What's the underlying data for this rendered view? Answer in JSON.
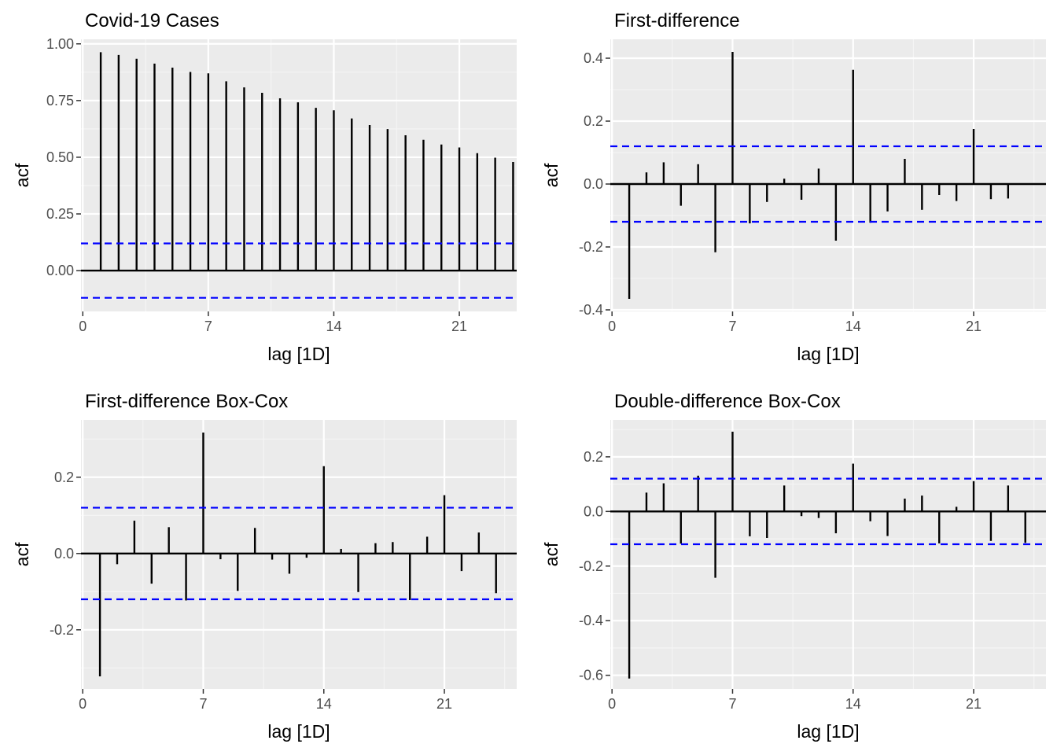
{
  "chart_data": [
    {
      "type": "bar",
      "title": "Covid-19 Cases",
      "xlabel": "lag [1D]",
      "ylabel": "acf",
      "xlim": [
        -0.1,
        24.2
      ],
      "ylim": [
        -0.18,
        1.02
      ],
      "xticks": [
        0,
        7,
        14,
        21
      ],
      "yticks": [
        0,
        0.25,
        0.5,
        0.75,
        1
      ],
      "ytick_labels": [
        "0.00",
        "0.25",
        "0.50",
        "0.75",
        "1.00"
      ],
      "conf_limit": 0.12,
      "x": [
        1,
        2,
        3,
        4,
        5,
        6,
        7,
        8,
        9,
        10,
        11,
        12,
        13,
        14,
        15,
        16,
        17,
        18,
        19,
        20,
        21,
        22,
        23,
        24
      ],
      "values": [
        0.963,
        0.951,
        0.934,
        0.913,
        0.895,
        0.876,
        0.87,
        0.835,
        0.808,
        0.784,
        0.76,
        0.742,
        0.718,
        0.707,
        0.671,
        0.642,
        0.624,
        0.597,
        0.577,
        0.556,
        0.543,
        0.518,
        0.498,
        0.479
      ]
    },
    {
      "type": "bar",
      "title": "First-difference",
      "xlabel": "lag [1D]",
      "ylabel": "acf",
      "xlim": [
        -0.1,
        25.2
      ],
      "ylim": [
        -0.405,
        0.46
      ],
      "xticks": [
        0,
        7,
        14,
        21
      ],
      "yticks": [
        -0.4,
        -0.2,
        0,
        0.2,
        0.4
      ],
      "ytick_labels": [
        "-0.4",
        "-0.2",
        "0.0",
        "0.2",
        "0.4"
      ],
      "conf_limit": 0.12,
      "x": [
        1,
        2,
        3,
        4,
        5,
        6,
        7,
        8,
        9,
        10,
        11,
        12,
        13,
        14,
        15,
        16,
        17,
        18,
        19,
        20,
        21,
        22,
        23
      ],
      "values": [
        -0.365,
        0.037,
        0.069,
        -0.069,
        0.063,
        -0.217,
        0.42,
        -0.125,
        -0.057,
        0.017,
        -0.05,
        0.049,
        -0.18,
        0.363,
        -0.123,
        -0.087,
        0.08,
        -0.082,
        -0.035,
        -0.054,
        0.175,
        -0.048,
        -0.046
      ]
    },
    {
      "type": "bar",
      "title": "First-difference Box-Cox",
      "xlabel": "lag [1D]",
      "ylabel": "acf",
      "xlim": [
        -0.1,
        25.2
      ],
      "ylim": [
        -0.355,
        0.35
      ],
      "xticks": [
        0,
        7,
        14,
        21
      ],
      "yticks": [
        -0.2,
        0,
        0.2
      ],
      "ytick_labels": [
        "-0.2",
        "0.0",
        "0.2"
      ],
      "conf_limit": 0.12,
      "x": [
        1,
        2,
        3,
        4,
        5,
        6,
        7,
        8,
        9,
        10,
        11,
        12,
        13,
        14,
        15,
        16,
        17,
        18,
        19,
        20,
        21,
        22,
        23,
        24
      ],
      "values": [
        -0.322,
        -0.028,
        0.086,
        -0.079,
        0.069,
        -0.123,
        0.317,
        -0.015,
        -0.098,
        0.067,
        -0.016,
        -0.053,
        -0.011,
        0.229,
        0.012,
        -0.101,
        0.027,
        0.03,
        -0.122,
        0.044,
        0.153,
        -0.046,
        0.055,
        -0.104
      ]
    },
    {
      "type": "bar",
      "title": "Double-difference Box-Cox",
      "xlabel": "lag [1D]",
      "ylabel": "acf",
      "xlim": [
        -0.1,
        25.2
      ],
      "ylim": [
        -0.65,
        0.335
      ],
      "xticks": [
        0,
        7,
        14,
        21
      ],
      "yticks": [
        -0.6,
        -0.4,
        -0.2,
        0,
        0.2
      ],
      "ytick_labels": [
        "-0.6",
        "-0.4",
        "-0.2",
        "0.0",
        "0.2"
      ],
      "conf_limit": 0.12,
      "x": [
        1,
        2,
        3,
        4,
        5,
        6,
        7,
        8,
        9,
        10,
        11,
        12,
        13,
        14,
        15,
        16,
        17,
        18,
        19,
        20,
        21,
        22,
        23,
        24
      ],
      "values": [
        -0.612,
        0.069,
        0.103,
        -0.118,
        0.131,
        -0.243,
        0.292,
        -0.091,
        -0.097,
        0.095,
        -0.017,
        -0.024,
        -0.08,
        0.175,
        -0.036,
        -0.09,
        0.047,
        0.058,
        -0.117,
        0.017,
        0.111,
        -0.108,
        0.095,
        -0.115
      ]
    }
  ],
  "colors": {
    "panel_background": "#ebebeb",
    "grid_major": "#ffffff",
    "grid_minor": "#f5f5f5",
    "spike": "#000000",
    "confidence_line": "#0000ff",
    "axis_text": "#4d4d4d",
    "title_text": "#000000"
  }
}
